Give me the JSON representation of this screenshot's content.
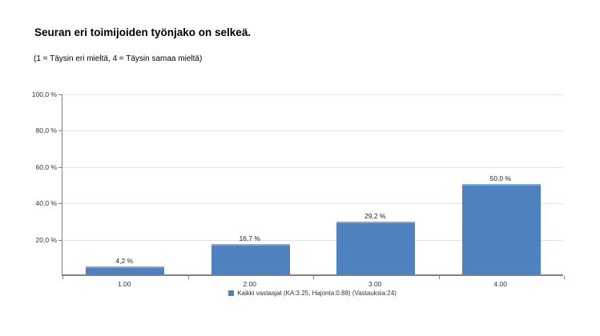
{
  "header": {
    "title": "Seuran eri toimijoiden työnjako on selkeä.",
    "subtitle": "(1 = Täysin eri mieltä, 4 = Täysin samaa mieltä)"
  },
  "chart_data": {
    "type": "bar",
    "title": "Seuran eri toimijoiden työnjako on selkeä.",
    "subtitle": "(1 = Täysin eri mieltä, 4 = Täysin samaa mieltä)",
    "categories": [
      "1.00",
      "2.00",
      "3.00",
      "4.00"
    ],
    "values": [
      4.2,
      16.7,
      29.2,
      50.0
    ],
    "value_labels": [
      "4,2 %",
      "16,7 %",
      "29,2 %",
      "50,0 %"
    ],
    "xlabel": "",
    "ylabel": "",
    "ylim": [
      0,
      100
    ],
    "grid": true,
    "y_ticks": [
      {
        "value": 20,
        "label": "20,0 %"
      },
      {
        "value": 40,
        "label": "40,0 %"
      },
      {
        "value": 60,
        "label": "60,0 %"
      },
      {
        "value": 80,
        "label": "80,0 %"
      },
      {
        "value": 100,
        "label": "100,0 %"
      }
    ],
    "legend": {
      "position": "bottom-center",
      "entries": [
        {
          "label": "Kaikki vastaajat (KA:3.25, Hajonta:0.88) (Vastauksia:24)",
          "color": "#4e81bd"
        }
      ]
    },
    "colors": {
      "bar_fill": "#4e81bd",
      "bar_top_highlight": "#85aad3",
      "gridline": "#dde4f1",
      "axis": "#808080",
      "label_text": "#333333"
    }
  }
}
